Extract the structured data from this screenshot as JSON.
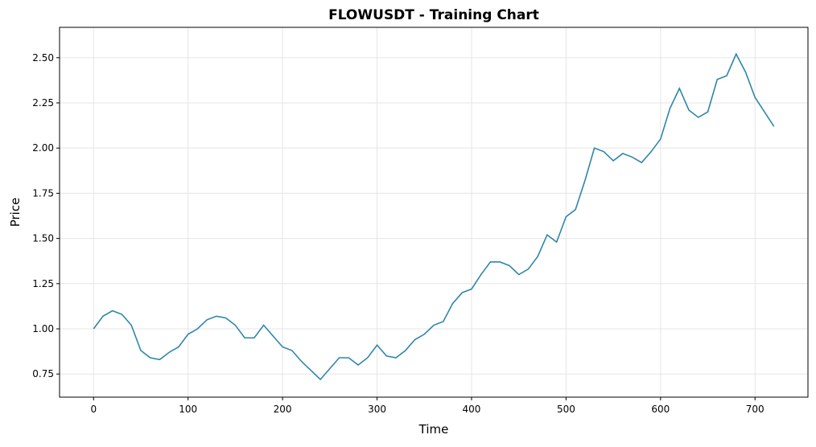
{
  "chart_data": {
    "type": "line",
    "title": "FLOWUSDT - Training Chart",
    "x_label": "Time",
    "y_label": "Price",
    "x": [
      0,
      10,
      20,
      30,
      40,
      50,
      60,
      70,
      80,
      90,
      100,
      110,
      120,
      130,
      140,
      150,
      160,
      170,
      180,
      190,
      200,
      210,
      220,
      230,
      240,
      250,
      260,
      270,
      280,
      290,
      300,
      310,
      320,
      330,
      340,
      350,
      360,
      370,
      380,
      390,
      400,
      410,
      420,
      430,
      440,
      450,
      460,
      470,
      480,
      490,
      500,
      510,
      520,
      530,
      540,
      550,
      560,
      570,
      580,
      590,
      600,
      610,
      620,
      630,
      640,
      650,
      660,
      670,
      680,
      690,
      700,
      710,
      720
    ],
    "series": [
      {
        "name": "FLOWUSDT",
        "color": "#2e86ab",
        "values": [
          1.0,
          1.07,
          1.1,
          1.08,
          1.02,
          0.88,
          0.84,
          0.83,
          0.87,
          0.9,
          0.97,
          1.0,
          1.05,
          1.07,
          1.06,
          1.02,
          0.95,
          0.95,
          1.02,
          0.96,
          0.9,
          0.88,
          0.82,
          0.77,
          0.72,
          0.78,
          0.84,
          0.84,
          0.8,
          0.84,
          0.91,
          0.85,
          0.84,
          0.88,
          0.94,
          0.97,
          1.02,
          1.04,
          1.14,
          1.2,
          1.22,
          1.3,
          1.37,
          1.37,
          1.35,
          1.3,
          1.33,
          1.4,
          1.52,
          1.48,
          1.62,
          1.66,
          1.82,
          2.0,
          1.98,
          1.93,
          1.97,
          1.95,
          1.92,
          1.98,
          2.05,
          2.22,
          2.33,
          2.21,
          2.17,
          2.2,
          2.38,
          2.4,
          2.52,
          2.42,
          2.28,
          2.2,
          2.12
        ]
      }
    ],
    "xlim": [
      -36,
      756
    ],
    "ylim": [
      0.622,
      2.668
    ],
    "xticks": [
      0,
      100,
      200,
      300,
      400,
      500,
      600,
      700
    ],
    "yticks": [
      0.75,
      {
        "value": 1.0,
        "label": "1.00"
      },
      1.25,
      {
        "value": 1.5,
        "label": "1.50"
      },
      1.75,
      {
        "value": 2.0,
        "label": "2.00"
      },
      2.25,
      {
        "value": 2.5,
        "label": "2.50"
      }
    ],
    "grid": true
  }
}
